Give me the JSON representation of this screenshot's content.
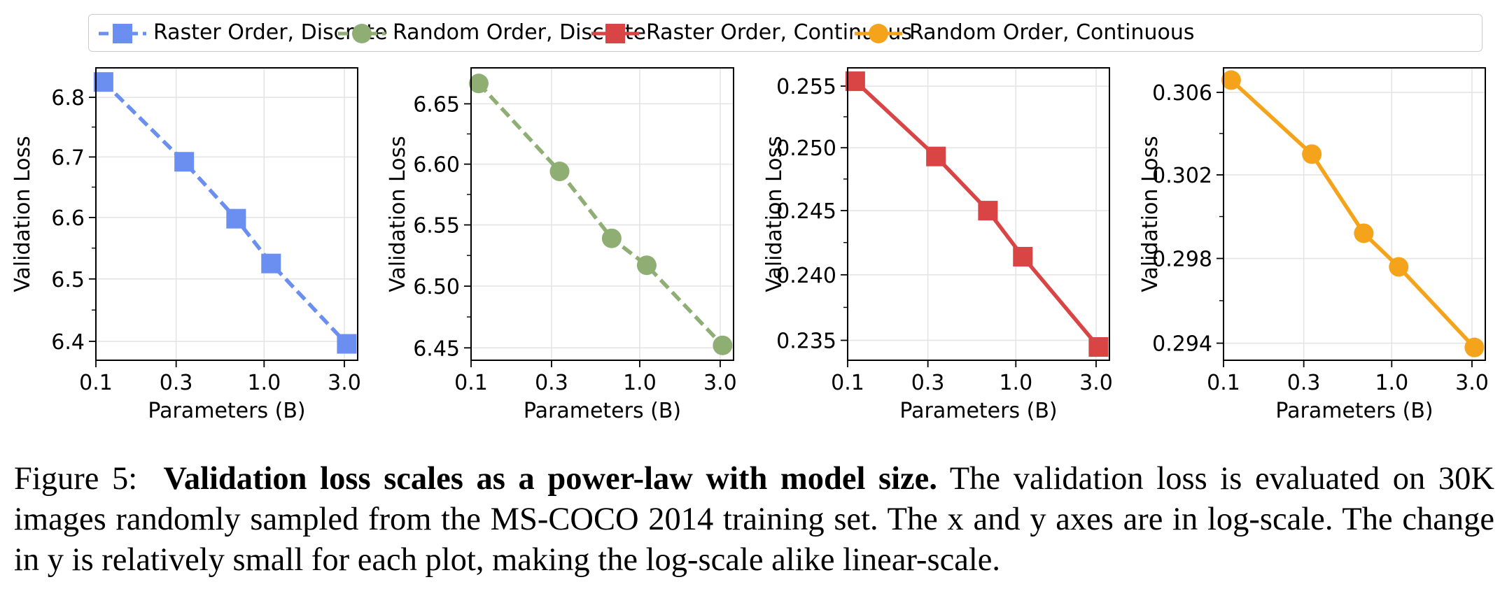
{
  "legend": {
    "items": [
      {
        "label": "Raster Order, Discrete",
        "color": "#6b8ff0",
        "marker": "square",
        "dashed": true
      },
      {
        "label": "Random Order, Discrete",
        "color": "#8fae74",
        "marker": "circle",
        "dashed": true
      },
      {
        "label": "Raster Order, Continuous",
        "color": "#d94545",
        "marker": "square",
        "dashed": false
      },
      {
        "label": "Random Order, Continuous",
        "color": "#f5a31a",
        "marker": "circle",
        "dashed": false
      }
    ]
  },
  "chart_data": [
    {
      "type": "line",
      "series": [
        {
          "name": "Raster Order, Discrete",
          "x": [
            0.111,
            0.335,
            0.682,
            1.1,
            3.1
          ],
          "y": [
            6.826,
            6.692,
            6.598,
            6.525,
            6.396
          ]
        }
      ],
      "xlabel": "Parameters (B)",
      "ylabel": "Validation Loss",
      "xscale": "log",
      "yscale": "log",
      "xticks": [
        "0.1",
        "0.3",
        "1.0",
        "3.0"
      ],
      "yticks": [
        "6.4",
        "6.5",
        "6.6",
        "6.7",
        "6.8"
      ],
      "xlim": [
        0.1,
        3.6
      ],
      "ylim": [
        6.37,
        6.85
      ],
      "grid": true
    },
    {
      "type": "line",
      "series": [
        {
          "name": "Random Order, Discrete",
          "x": [
            0.111,
            0.335,
            0.682,
            1.1,
            3.1
          ],
          "y": [
            6.667,
            6.594,
            6.539,
            6.517,
            6.452
          ]
        }
      ],
      "xlabel": "Parameters (B)",
      "ylabel": "Validation Loss",
      "xscale": "log",
      "yscale": "log",
      "xticks": [
        "0.1",
        "0.3",
        "1.0",
        "3.0"
      ],
      "yticks": [
        "6.45",
        "6.50",
        "6.55",
        "6.60",
        "6.65"
      ],
      "xlim": [
        0.1,
        3.6
      ],
      "ylim": [
        6.44,
        6.68
      ],
      "grid": true
    },
    {
      "type": "line",
      "series": [
        {
          "name": "Raster Order, Continuous",
          "x": [
            0.111,
            0.335,
            0.682,
            1.1,
            3.1
          ],
          "y": [
            0.2554,
            0.2493,
            0.245,
            0.2414,
            0.2345
          ]
        }
      ],
      "xlabel": "Parameters (B)",
      "ylabel": "Validation Loss",
      "xscale": "log",
      "yscale": "log",
      "xticks": [
        "0.1",
        "0.3",
        "1.0",
        "3.0"
      ],
      "yticks": [
        "0.235",
        "0.240",
        "0.245",
        "0.250",
        "0.255"
      ],
      "xlim": [
        0.1,
        3.6
      ],
      "ylim": [
        0.2335,
        0.2565
      ],
      "grid": true
    },
    {
      "type": "line",
      "series": [
        {
          "name": "Random Order, Continuous",
          "x": [
            0.111,
            0.335,
            0.682,
            1.1,
            3.1
          ],
          "y": [
            0.3066,
            0.303,
            0.2992,
            0.2976,
            0.2938
          ]
        }
      ],
      "xlabel": "Parameters (B)",
      "ylabel": "Validation Loss",
      "xscale": "log",
      "yscale": "log",
      "xticks": [
        "0.1",
        "0.3",
        "1.0",
        "3.0"
      ],
      "yticks": [
        "0.294",
        "0.298",
        "0.302",
        "0.306"
      ],
      "xlim": [
        0.1,
        3.6
      ],
      "ylim": [
        0.2932,
        0.3072
      ],
      "grid": true
    }
  ],
  "caption": {
    "label": "Figure 5:",
    "bold": "Validation loss scales as a power-law with model size.",
    "text": "The validation loss is evaluated on 30K images randomly sampled from the MS-COCO 2014 training set. The x and y axes are in log-scale. The change in y is relatively small for each plot, making the log-scale alike linear-scale."
  }
}
